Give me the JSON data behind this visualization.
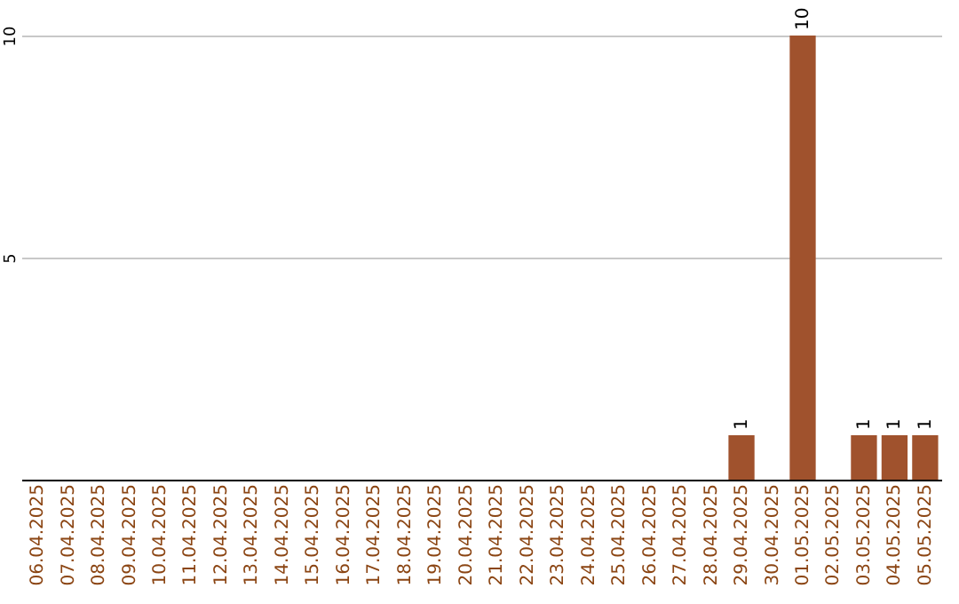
{
  "chart_data": {
    "type": "bar",
    "categories": [
      "06.04.2025",
      "07.04.2025",
      "08.04.2025",
      "09.04.2025",
      "10.04.2025",
      "11.04.2025",
      "12.04.2025",
      "13.04.2025",
      "14.04.2025",
      "15.04.2025",
      "16.04.2025",
      "17.04.2025",
      "18.04.2025",
      "19.04.2025",
      "20.04.2025",
      "21.04.2025",
      "22.04.2025",
      "23.04.2025",
      "24.04.2025",
      "25.04.2025",
      "26.04.2025",
      "27.04.2025",
      "28.04.2025",
      "29.04.2025",
      "30.04.2025",
      "01.05.2025",
      "02.05.2025",
      "03.05.2025",
      "04.05.2025",
      "05.05.2025"
    ],
    "values": [
      0,
      0,
      0,
      0,
      0,
      0,
      0,
      0,
      0,
      0,
      0,
      0,
      0,
      0,
      0,
      0,
      0,
      0,
      0,
      0,
      0,
      0,
      0,
      1,
      0,
      10,
      0,
      1,
      1,
      1
    ],
    "value_labels": [
      null,
      null,
      null,
      null,
      null,
      null,
      null,
      null,
      null,
      null,
      null,
      null,
      null,
      null,
      null,
      null,
      null,
      null,
      null,
      null,
      null,
      null,
      null,
      "1",
      null,
      "10",
      null,
      "1",
      "1",
      "1"
    ],
    "color": "#a0522d",
    "ylim": [
      0,
      10
    ],
    "yticks": [
      5,
      10
    ],
    "grid": "y"
  }
}
